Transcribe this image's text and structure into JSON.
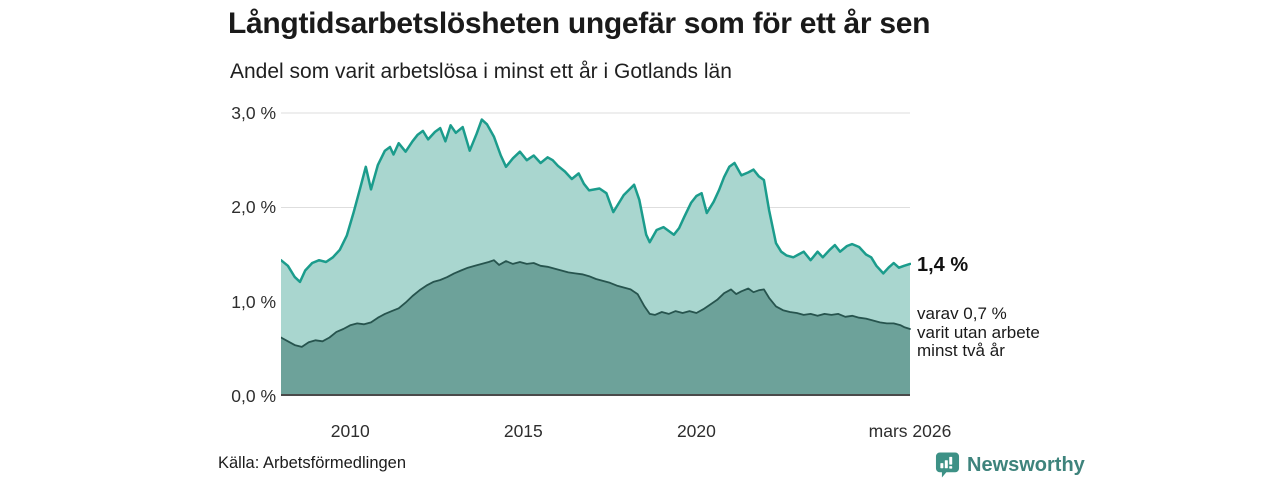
{
  "header": {
    "title": "Långtidsarbetslösheten ungefär som för ett år sen",
    "subtitle": "Andel som varit arbetslösa i minst ett år i Gotlands län"
  },
  "annotations": {
    "value_label": "1,4 %",
    "sub_lines": [
      "varav 0,7 %",
      "varit utan arbete",
      "minst två år"
    ]
  },
  "footer": {
    "source": "Källa: Arbetsförmedlingen",
    "brand": "Newsworthy"
  },
  "colors": {
    "total_line": "#1b9c8c",
    "total_fill": "#a9d6cf",
    "two_year_line": "#27544e",
    "two_year_fill": "#6da29a",
    "gridline": "#dedede",
    "baseline": "#4a4a4a",
    "axis_text": "#2e2e2e",
    "brand_teal": "#3d9186"
  },
  "chart_data": {
    "type": "area",
    "title": "Långtidsarbetslösheten ungefär som för ett år sen",
    "subtitle": "Andel som varit arbetslösa i minst ett år i Gotlands län",
    "xlabel": "",
    "ylabel": "",
    "grid": true,
    "legend_position": "none",
    "x_range": [
      2008.0,
      2026.17
    ],
    "ylim": [
      0,
      3.0
    ],
    "y_ticks": [
      {
        "v": 0,
        "label": "0,0 %"
      },
      {
        "v": 1,
        "label": "1,0 %"
      },
      {
        "v": 2,
        "label": "2,0 %"
      },
      {
        "v": 3,
        "label": "3,0 %"
      }
    ],
    "x_ticks": [
      {
        "t": 2010,
        "label": "2010"
      },
      {
        "t": 2015,
        "label": "2015"
      },
      {
        "t": 2020,
        "label": "2020"
      },
      {
        "t": 2026.17,
        "label": "mars 2026"
      }
    ],
    "unit": "%",
    "series": [
      {
        "name": "Andel arbetslösa minst ett år",
        "line_color": "#1b9c8c",
        "fill_color": "#a9d6cf",
        "line_width": 2.5,
        "end_value": "1,4 %",
        "points": [
          [
            2008.0,
            1.44
          ],
          [
            2008.2,
            1.38
          ],
          [
            2008.4,
            1.26
          ],
          [
            2008.55,
            1.21
          ],
          [
            2008.7,
            1.33
          ],
          [
            2008.9,
            1.41
          ],
          [
            2009.1,
            1.44
          ],
          [
            2009.3,
            1.42
          ],
          [
            2009.5,
            1.47
          ],
          [
            2009.7,
            1.55
          ],
          [
            2009.9,
            1.7
          ],
          [
            2010.1,
            1.95
          ],
          [
            2010.3,
            2.22
          ],
          [
            2010.45,
            2.43
          ],
          [
            2010.6,
            2.19
          ],
          [
            2010.8,
            2.45
          ],
          [
            2011.0,
            2.6
          ],
          [
            2011.15,
            2.64
          ],
          [
            2011.25,
            2.56
          ],
          [
            2011.4,
            2.68
          ],
          [
            2011.6,
            2.59
          ],
          [
            2011.8,
            2.7
          ],
          [
            2011.95,
            2.77
          ],
          [
            2012.1,
            2.81
          ],
          [
            2012.25,
            2.72
          ],
          [
            2012.45,
            2.8
          ],
          [
            2012.6,
            2.84
          ],
          [
            2012.75,
            2.7
          ],
          [
            2012.9,
            2.87
          ],
          [
            2013.05,
            2.79
          ],
          [
            2013.25,
            2.85
          ],
          [
            2013.45,
            2.6
          ],
          [
            2013.65,
            2.78
          ],
          [
            2013.8,
            2.93
          ],
          [
            2013.95,
            2.88
          ],
          [
            2014.15,
            2.75
          ],
          [
            2014.35,
            2.55
          ],
          [
            2014.5,
            2.43
          ],
          [
            2014.7,
            2.52
          ],
          [
            2014.9,
            2.59
          ],
          [
            2015.1,
            2.5
          ],
          [
            2015.3,
            2.55
          ],
          [
            2015.5,
            2.47
          ],
          [
            2015.7,
            2.53
          ],
          [
            2015.85,
            2.5
          ],
          [
            2016.0,
            2.44
          ],
          [
            2016.2,
            2.38
          ],
          [
            2016.4,
            2.3
          ],
          [
            2016.6,
            2.36
          ],
          [
            2016.75,
            2.25
          ],
          [
            2016.9,
            2.18
          ],
          [
            2017.2,
            2.2
          ],
          [
            2017.4,
            2.15
          ],
          [
            2017.6,
            1.95
          ],
          [
            2017.9,
            2.13
          ],
          [
            2018.2,
            2.24
          ],
          [
            2018.35,
            2.08
          ],
          [
            2018.55,
            1.71
          ],
          [
            2018.65,
            1.63
          ],
          [
            2018.85,
            1.76
          ],
          [
            2019.05,
            1.79
          ],
          [
            2019.35,
            1.71
          ],
          [
            2019.5,
            1.78
          ],
          [
            2019.65,
            1.9
          ],
          [
            2019.85,
            2.05
          ],
          [
            2020.0,
            2.12
          ],
          [
            2020.15,
            2.15
          ],
          [
            2020.3,
            1.94
          ],
          [
            2020.5,
            2.06
          ],
          [
            2020.65,
            2.18
          ],
          [
            2020.8,
            2.32
          ],
          [
            2020.95,
            2.43
          ],
          [
            2021.1,
            2.47
          ],
          [
            2021.3,
            2.34
          ],
          [
            2021.5,
            2.37
          ],
          [
            2021.65,
            2.4
          ],
          [
            2021.8,
            2.33
          ],
          [
            2021.95,
            2.29
          ],
          [
            2022.1,
            1.97
          ],
          [
            2022.3,
            1.62
          ],
          [
            2022.45,
            1.53
          ],
          [
            2022.6,
            1.49
          ],
          [
            2022.8,
            1.47
          ],
          [
            2022.95,
            1.5
          ],
          [
            2023.1,
            1.53
          ],
          [
            2023.3,
            1.44
          ],
          [
            2023.5,
            1.53
          ],
          [
            2023.65,
            1.47
          ],
          [
            2023.85,
            1.55
          ],
          [
            2024.0,
            1.6
          ],
          [
            2024.15,
            1.53
          ],
          [
            2024.35,
            1.59
          ],
          [
            2024.5,
            1.61
          ],
          [
            2024.7,
            1.58
          ],
          [
            2024.9,
            1.5
          ],
          [
            2025.05,
            1.47
          ],
          [
            2025.2,
            1.38
          ],
          [
            2025.4,
            1.3
          ],
          [
            2025.55,
            1.36
          ],
          [
            2025.7,
            1.41
          ],
          [
            2025.85,
            1.36
          ],
          [
            2026.0,
            1.38
          ],
          [
            2026.17,
            1.4
          ]
        ]
      },
      {
        "name": "varav utan arbete minst två år",
        "line_color": "#27544e",
        "fill_color": "#6da29a",
        "line_width": 1.8,
        "end_value": "0,7 %",
        "points": [
          [
            2008.0,
            0.62
          ],
          [
            2008.2,
            0.58
          ],
          [
            2008.4,
            0.54
          ],
          [
            2008.6,
            0.52
          ],
          [
            2008.8,
            0.57
          ],
          [
            2009.0,
            0.59
          ],
          [
            2009.2,
            0.58
          ],
          [
            2009.4,
            0.62
          ],
          [
            2009.6,
            0.68
          ],
          [
            2009.8,
            0.71
          ],
          [
            2010.0,
            0.75
          ],
          [
            2010.2,
            0.77
          ],
          [
            2010.4,
            0.76
          ],
          [
            2010.6,
            0.78
          ],
          [
            2010.8,
            0.83
          ],
          [
            2011.0,
            0.87
          ],
          [
            2011.2,
            0.9
          ],
          [
            2011.4,
            0.93
          ],
          [
            2011.6,
            0.99
          ],
          [
            2011.8,
            1.06
          ],
          [
            2012.0,
            1.12
          ],
          [
            2012.2,
            1.17
          ],
          [
            2012.4,
            1.21
          ],
          [
            2012.6,
            1.23
          ],
          [
            2012.8,
            1.26
          ],
          [
            2013.0,
            1.3
          ],
          [
            2013.2,
            1.33
          ],
          [
            2013.4,
            1.36
          ],
          [
            2013.6,
            1.38
          ],
          [
            2013.8,
            1.4
          ],
          [
            2014.0,
            1.42
          ],
          [
            2014.15,
            1.44
          ],
          [
            2014.3,
            1.39
          ],
          [
            2014.5,
            1.43
          ],
          [
            2014.7,
            1.4
          ],
          [
            2014.9,
            1.42
          ],
          [
            2015.1,
            1.4
          ],
          [
            2015.3,
            1.41
          ],
          [
            2015.5,
            1.38
          ],
          [
            2015.7,
            1.37
          ],
          [
            2015.9,
            1.35
          ],
          [
            2016.1,
            1.33
          ],
          [
            2016.3,
            1.31
          ],
          [
            2016.5,
            1.3
          ],
          [
            2016.7,
            1.29
          ],
          [
            2016.9,
            1.27
          ],
          [
            2017.1,
            1.24
          ],
          [
            2017.3,
            1.22
          ],
          [
            2017.5,
            1.2
          ],
          [
            2017.7,
            1.17
          ],
          [
            2017.9,
            1.15
          ],
          [
            2018.1,
            1.13
          ],
          [
            2018.3,
            1.08
          ],
          [
            2018.5,
            0.95
          ],
          [
            2018.65,
            0.87
          ],
          [
            2018.8,
            0.86
          ],
          [
            2019.0,
            0.89
          ],
          [
            2019.2,
            0.87
          ],
          [
            2019.4,
            0.9
          ],
          [
            2019.6,
            0.88
          ],
          [
            2019.8,
            0.9
          ],
          [
            2020.0,
            0.88
          ],
          [
            2020.2,
            0.92
          ],
          [
            2020.4,
            0.97
          ],
          [
            2020.6,
            1.02
          ],
          [
            2020.8,
            1.09
          ],
          [
            2021.0,
            1.13
          ],
          [
            2021.15,
            1.08
          ],
          [
            2021.3,
            1.11
          ],
          [
            2021.5,
            1.14
          ],
          [
            2021.65,
            1.1
          ],
          [
            2021.8,
            1.12
          ],
          [
            2021.95,
            1.13
          ],
          [
            2022.1,
            1.04
          ],
          [
            2022.3,
            0.95
          ],
          [
            2022.5,
            0.91
          ],
          [
            2022.7,
            0.89
          ],
          [
            2022.9,
            0.88
          ],
          [
            2023.1,
            0.86
          ],
          [
            2023.3,
            0.87
          ],
          [
            2023.5,
            0.85
          ],
          [
            2023.7,
            0.87
          ],
          [
            2023.9,
            0.86
          ],
          [
            2024.1,
            0.87
          ],
          [
            2024.3,
            0.84
          ],
          [
            2024.5,
            0.85
          ],
          [
            2024.7,
            0.83
          ],
          [
            2024.9,
            0.82
          ],
          [
            2025.1,
            0.8
          ],
          [
            2025.3,
            0.78
          ],
          [
            2025.5,
            0.77
          ],
          [
            2025.7,
            0.77
          ],
          [
            2025.9,
            0.75
          ],
          [
            2026.0,
            0.73
          ],
          [
            2026.17,
            0.71
          ]
        ]
      }
    ]
  }
}
